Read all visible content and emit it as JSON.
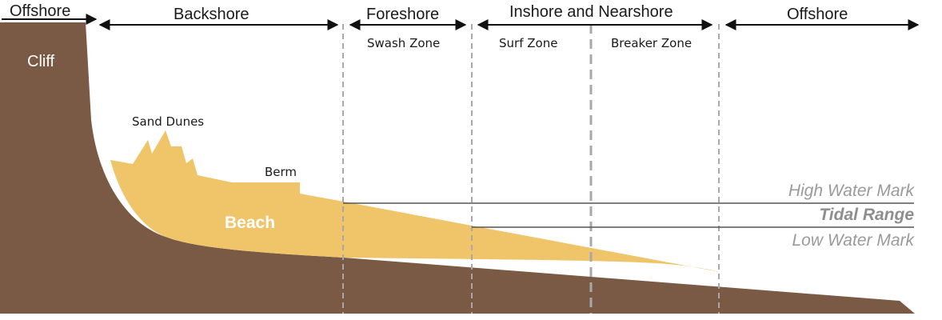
{
  "zones": {
    "offshore_left": "Offshore",
    "backshore": "Backshore",
    "foreshore": "Foreshore",
    "inshore_nearshore": "Inshore and Nearshore",
    "offshore_right": "Offshore"
  },
  "sub_zones": {
    "swash": "Swash Zone",
    "surf": "Surf Zone",
    "breaker": "Breaker Zone"
  },
  "features": {
    "cliff": "Cliff",
    "sand_dunes": "Sand Dunes",
    "berm": "Berm",
    "beach": "Beach"
  },
  "water_marks": {
    "high": "High Water Mark",
    "tidal": "Tidal Range",
    "low": "Low Water Mark"
  },
  "colors": {
    "rock": "#7a5a45",
    "sand": "#f0c56a",
    "line": "#555555",
    "divider": "#a8a8a8",
    "arrow": "#111111"
  }
}
